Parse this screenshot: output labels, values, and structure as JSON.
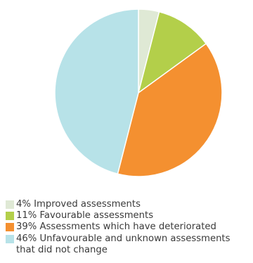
{
  "chart_data": {
    "type": "pie",
    "categories": [
      "Improved assessments",
      "Favourable assessments",
      "Assessments which have deteriorated",
      "Unfavourable and unknown assessments that did not change"
    ],
    "values": [
      4,
      11,
      39,
      46
    ],
    "colors": [
      "#dfe9d5",
      "#b3cf4a",
      "#f49030",
      "#b7e2e8"
    ],
    "legend": {
      "placement": "bottom-left",
      "items": [
        {
          "label": "4% Improved assessments",
          "color": "#dfe9d5"
        },
        {
          "label": "11% Favourable assessments",
          "color": "#b3cf4a"
        },
        {
          "label": "39% Assessments which have deteriorated",
          "color": "#f49030"
        },
        {
          "label": "46% Unfavourable and unknown assessments\nthat did not change",
          "color": "#b7e2e8"
        }
      ]
    }
  }
}
